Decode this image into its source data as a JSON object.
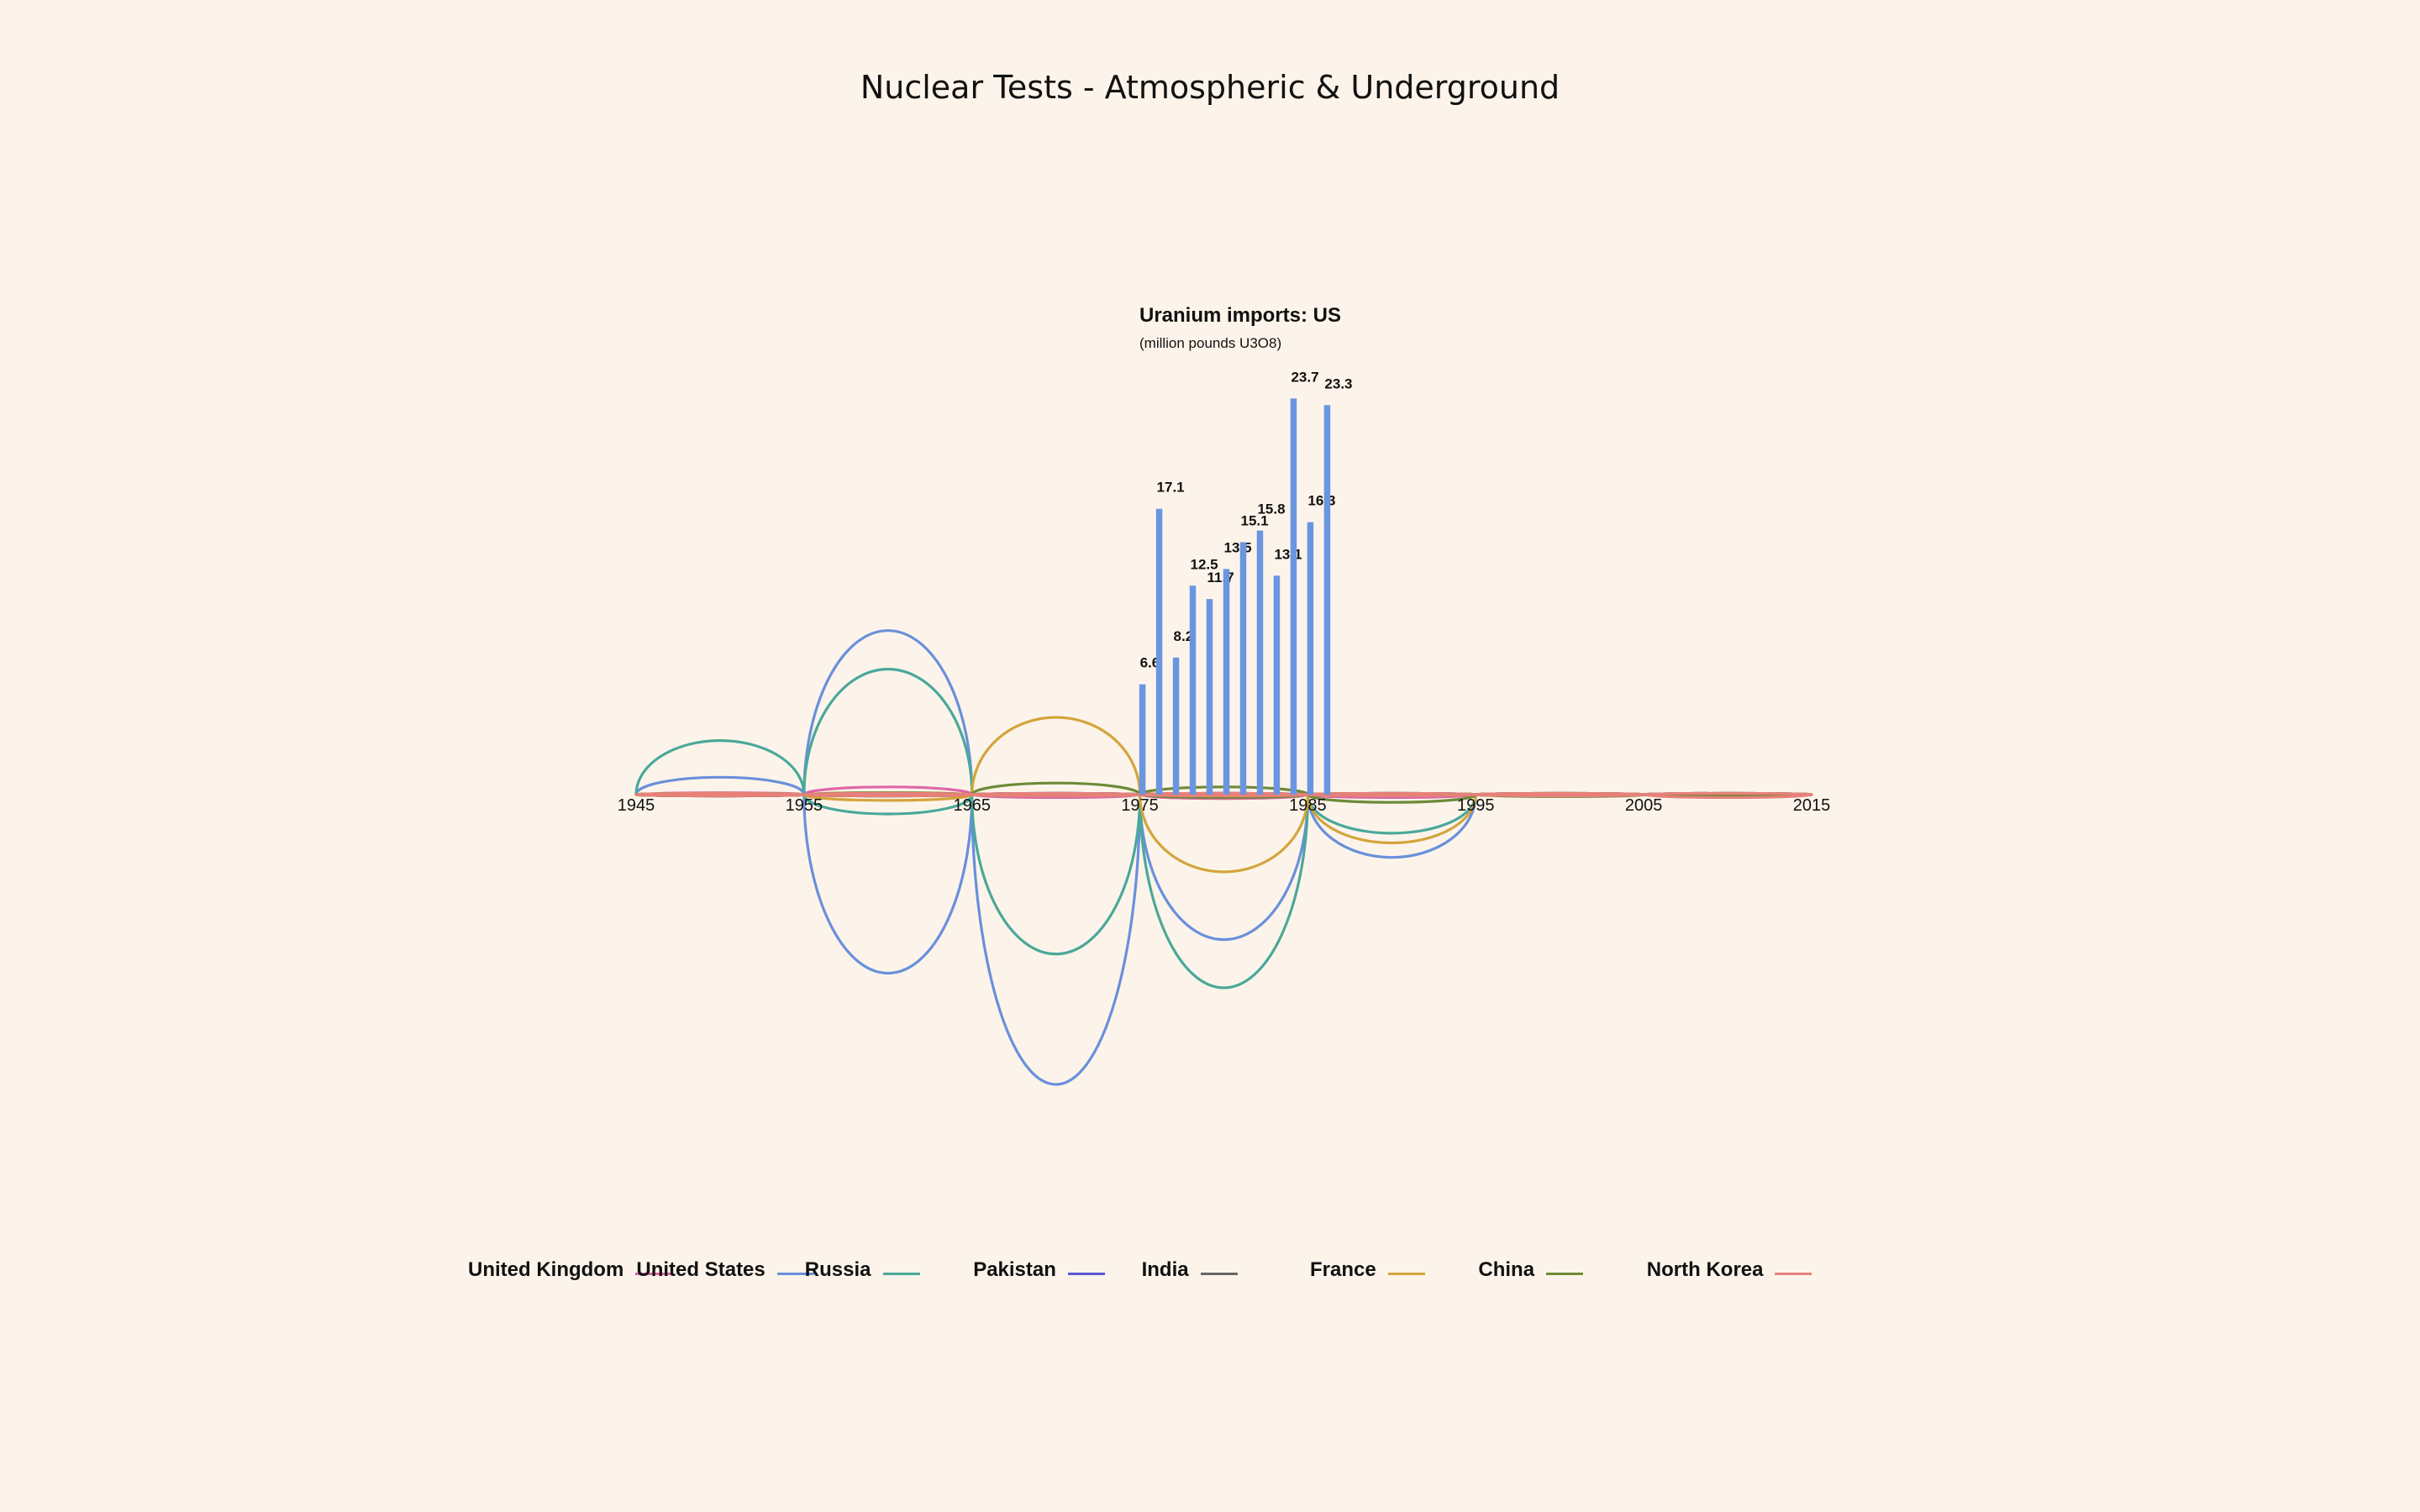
{
  "title": "Nuclear Tests - Atmospheric & Underground",
  "chart_data": [
    {
      "type": "line",
      "subtype": "arc",
      "title": "Nuclear Tests - Atmospheric & Underground",
      "x_ticks": [
        "1945",
        "1955",
        "1965",
        "1975",
        "1985",
        "1995",
        "2005",
        "2015"
      ],
      "x_range": [
        1945,
        2015
      ],
      "decades": [
        "1945-1955",
        "1955-1965",
        "1965-1975",
        "1975-1985",
        "1985-1995",
        "1995-2005",
        "2005-2015"
      ],
      "above_axis": "atmospheric",
      "below_axis": "underground",
      "series": [
        {
          "name": "United Kingdom",
          "color": "#e066a8",
          "atmospheric": [
            2,
            8,
            0,
            0,
            0,
            0,
            0
          ],
          "underground": [
            0,
            1,
            3,
            4,
            3,
            0,
            0
          ]
        },
        {
          "name": "United States",
          "color": "#6a8fdc",
          "atmospheric": [
            18,
            170,
            0,
            0,
            0,
            0,
            0
          ],
          "underground": [
            0,
            185,
            300,
            150,
            65,
            0,
            0
          ]
        },
        {
          "name": "Russia",
          "color": "#4aa89a",
          "atmospheric": [
            56,
            130,
            0,
            0,
            0,
            0,
            0
          ],
          "underground": [
            0,
            20,
            165,
            200,
            40,
            0,
            0
          ]
        },
        {
          "name": "Pakistan",
          "color": "#5a5ad6",
          "atmospheric": [
            0,
            0,
            0,
            0,
            0,
            0,
            0
          ],
          "underground": [
            0,
            0,
            0,
            0,
            0,
            1,
            0
          ]
        },
        {
          "name": "India",
          "color": "#666666",
          "atmospheric": [
            0,
            0,
            0,
            0,
            0,
            0,
            0
          ],
          "underground": [
            0,
            0,
            1,
            0,
            0,
            1,
            0
          ]
        },
        {
          "name": "France",
          "color": "#d4a43c",
          "atmospheric": [
            0,
            2,
            80,
            0,
            0,
            0,
            0
          ],
          "underground": [
            0,
            6,
            0,
            80,
            50,
            0,
            0
          ]
        },
        {
          "name": "China",
          "color": "#6e8a36",
          "atmospheric": [
            0,
            2,
            12,
            8,
            0,
            0,
            0
          ],
          "underground": [
            0,
            0,
            1,
            3,
            8,
            2,
            0
          ]
        },
        {
          "name": "North Korea",
          "color": "#e8807a",
          "atmospheric": [
            0,
            0,
            0,
            0,
            0,
            0,
            0
          ],
          "underground": [
            0,
            0,
            0,
            0,
            0,
            0,
            3
          ]
        }
      ]
    },
    {
      "type": "bar",
      "title": "Uranium imports: US",
      "subtitle": "(million pounds U3O8)",
      "color": "#6a95e0",
      "x": [
        1975,
        1976,
        1977,
        1978,
        1979,
        1980,
        1981,
        1982,
        1983,
        1984,
        1985,
        1986
      ],
      "values": [
        6.6,
        17.1,
        8.2,
        12.5,
        11.7,
        13.5,
        15.1,
        15.8,
        13.1,
        23.7,
        16.3,
        23.3
      ],
      "labels": [
        "6.6",
        "17.1",
        "8.2",
        "12.5",
        "11.7",
        "13.5",
        "15.1",
        "15.8",
        "13.1",
        "23.7",
        "16.3",
        "23.3"
      ]
    }
  ],
  "legend": [
    {
      "label": "United Kingdom",
      "color": "#e066a8"
    },
    {
      "label": "United States",
      "color": "#6a8fdc"
    },
    {
      "label": "Russia",
      "color": "#4aa89a"
    },
    {
      "label": "Pakistan",
      "color": "#5a5ad6"
    },
    {
      "label": "India",
      "color": "#666666"
    },
    {
      "label": "France",
      "color": "#d4a43c"
    },
    {
      "label": "China",
      "color": "#6e8a36"
    },
    {
      "label": "North Korea",
      "color": "#e8807a"
    }
  ]
}
